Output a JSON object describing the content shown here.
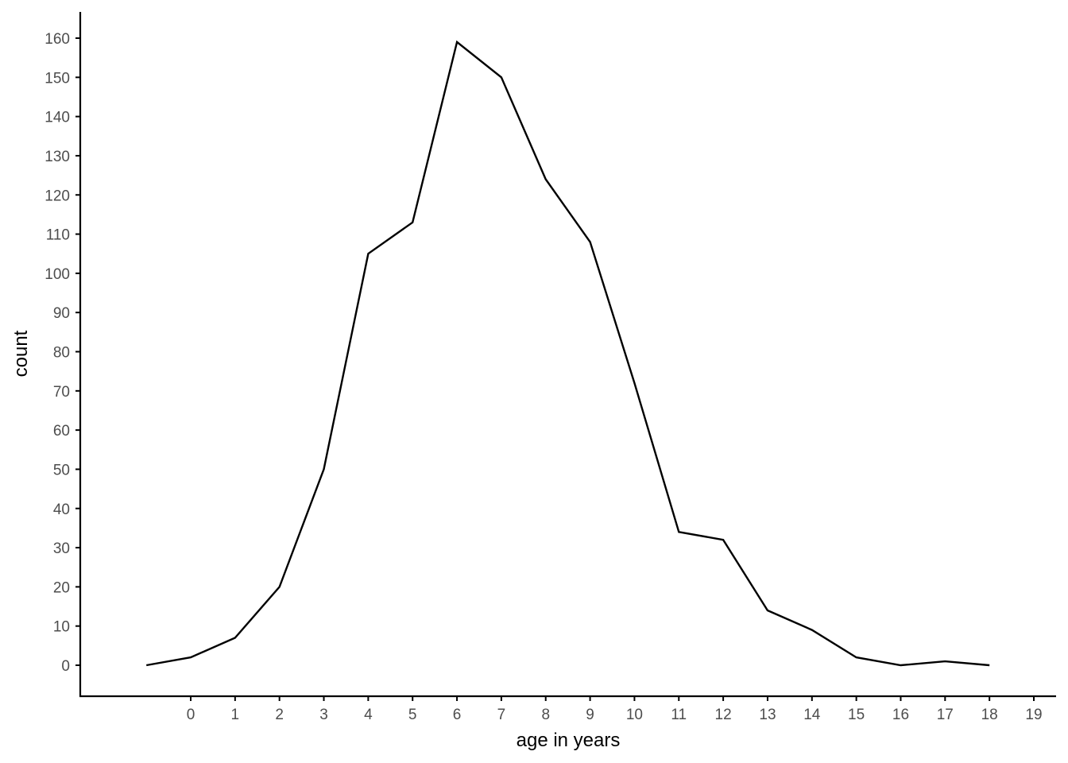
{
  "chart_data": {
    "type": "line",
    "title": "",
    "xlabel": "age in years",
    "ylabel": "count",
    "x": [
      -1,
      0,
      1,
      2,
      3,
      4,
      5,
      6,
      7,
      8,
      9,
      10,
      11,
      12,
      13,
      14,
      15,
      16,
      17,
      18
    ],
    "series": [
      {
        "name": "count",
        "values": [
          0,
          2,
          7,
          20,
          50,
          105,
          113,
          159,
          150,
          124,
          108,
          72,
          34,
          32,
          14,
          9,
          2,
          0,
          1,
          0
        ]
      }
    ],
    "x_ticks": [
      0,
      1,
      2,
      3,
      4,
      5,
      6,
      7,
      8,
      9,
      10,
      11,
      12,
      13,
      14,
      15,
      16,
      17,
      18,
      19
    ],
    "y_ticks": [
      0,
      10,
      20,
      30,
      40,
      50,
      60,
      70,
      80,
      90,
      100,
      110,
      120,
      130,
      140,
      150,
      160
    ],
    "xlim": [
      -2.5,
      19.5
    ],
    "ylim": [
      -8,
      167
    ],
    "grid": false,
    "legend": "none",
    "line_color": "#000000",
    "axis_color": "#000000",
    "tick_label_color": "#4d4d4d"
  }
}
